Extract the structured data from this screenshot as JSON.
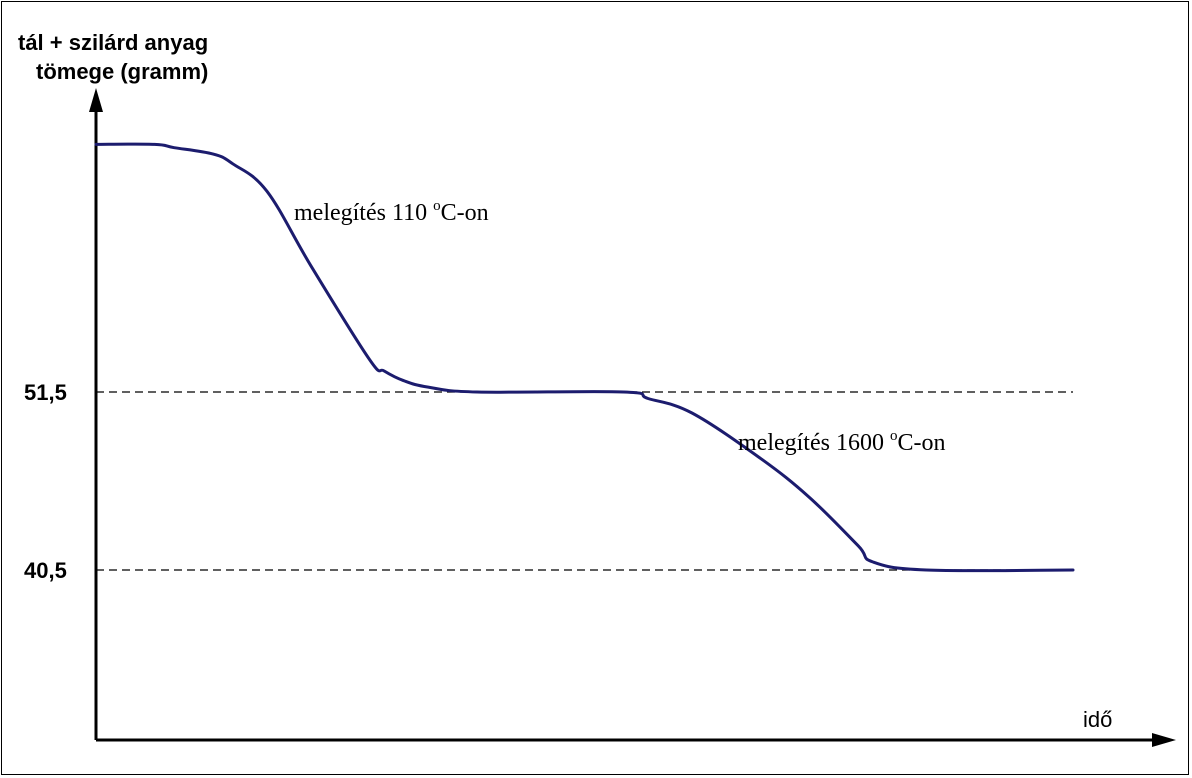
{
  "chart_data": {
    "type": "line",
    "title": "",
    "ylabel_lines": [
      "tál + szilárd anyag",
      "tömege (gramm)"
    ],
    "xlabel": "idő",
    "y_ticks": [
      {
        "value": 51.5,
        "label": "51,5"
      },
      {
        "value": 40.5,
        "label": "40,5"
      }
    ],
    "x_ticks": [],
    "ylim": [
      30.5,
      67
    ],
    "xlim": [
      0,
      100
    ],
    "grid": false,
    "legend": "none",
    "series": [
      {
        "color": "#1c1c6e",
        "x": [
          0,
          6,
          8,
          12,
          14,
          17.5,
          22,
          28,
          29.5,
          31.5,
          34,
          39,
          54,
          56.5,
          61,
          68,
          73,
          78,
          79.5,
          85,
          100
        ],
        "y": [
          66.8,
          66.8,
          66.6,
          66.2,
          65.6,
          63.9,
          59.3,
          53.5,
          52.8,
          52.2,
          51.8,
          51.5,
          51.5,
          51.1,
          50.2,
          47.4,
          45.0,
          42.0,
          41.0,
          40.5,
          40.5
        ]
      }
    ],
    "annotations": [
      {
        "text": "melegítés 110 ",
        "sup": "o",
        "suffix": "C-on"
      },
      {
        "text": "melegítés 1600 ",
        "sup": "o",
        "suffix": "C-on"
      }
    ]
  }
}
